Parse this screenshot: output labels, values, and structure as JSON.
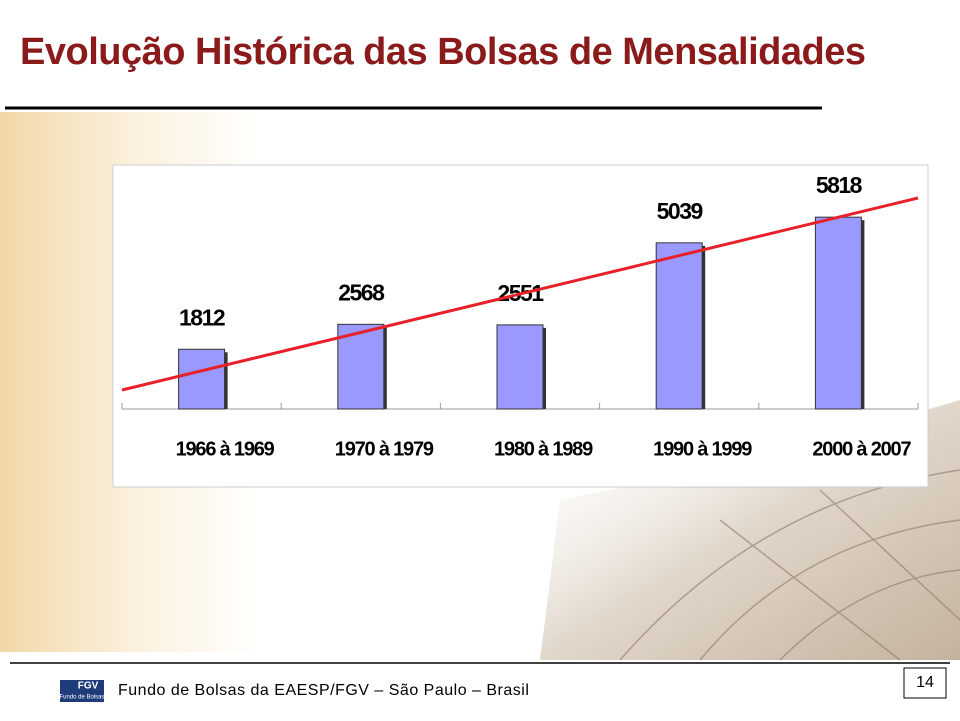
{
  "chart_data": {
    "type": "bar",
    "title": "Evolução Histórica das Bolsas de Mensalidades",
    "categories": [
      "1966 à 1969",
      "1970 à 1979",
      "1980 à 1989",
      "1990 à 1999",
      "2000 à 2007"
    ],
    "values": [
      1812,
      2568,
      2551,
      5039,
      5818
    ],
    "color": "#9999ff",
    "ylim": [
      0,
      7400
    ]
  },
  "footer": {
    "text": "Fundo de Bolsas da EAESP/FGV – São Paulo – Brasil",
    "page": "14",
    "logo": "FGV",
    "logo_subtitle": "Fundo de Bolsas"
  }
}
